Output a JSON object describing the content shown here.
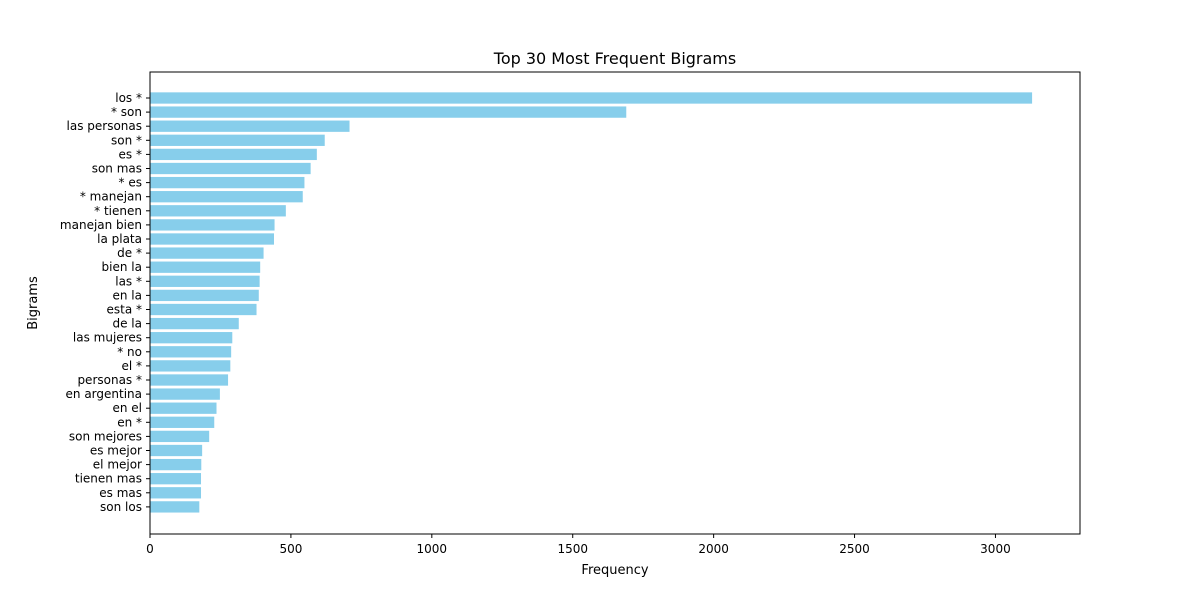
{
  "chart_data": {
    "type": "bar",
    "orientation": "horizontal",
    "title": "Top 30 Most Frequent Bigrams",
    "xlabel": "Frequency",
    "ylabel": "Bigrams",
    "xlim": [
      0,
      3300
    ],
    "xticks": [
      0,
      500,
      1000,
      1500,
      2000,
      2500,
      3000
    ],
    "bar_color": "#87ceeb",
    "grid": false,
    "categories": [
      "los *",
      "* son",
      "las personas",
      "son *",
      "es *",
      "son mas",
      "* es",
      "* manejan",
      "* tienen",
      "manejan bien",
      "la plata",
      "de *",
      "bien la",
      "las *",
      "en la",
      "esta *",
      "de la",
      "las mujeres",
      "* no",
      "el *",
      "personas *",
      "en argentina",
      "en el",
      "en *",
      "son mejores",
      "es mejor",
      "el mejor",
      "tienen mas",
      "es mas",
      "son los"
    ],
    "values": [
      3130,
      1690,
      708,
      620,
      592,
      570,
      548,
      542,
      482,
      442,
      440,
      403,
      391,
      389,
      386,
      378,
      315,
      292,
      288,
      285,
      277,
      248,
      236,
      228,
      210,
      185,
      182,
      181,
      181,
      175
    ]
  }
}
